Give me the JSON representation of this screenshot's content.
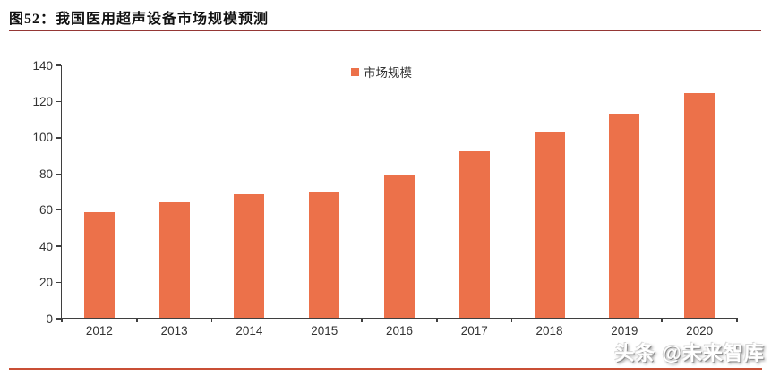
{
  "figure": {
    "title": "图52：我国医用超声设备市场规模预测"
  },
  "watermark": {
    "text": "头条 @未来智库"
  },
  "colors": {
    "bar": "#EC714A",
    "title_rule": "#953735",
    "bottom_rule": "#C94F35",
    "axis": "#3f3f3f"
  },
  "chart_data": {
    "type": "bar",
    "title": "图52：我国医用超声设备市场规模预测",
    "legend": [
      "市场规模"
    ],
    "legend_position": "top-center",
    "categories": [
      "2012",
      "2013",
      "2014",
      "2015",
      "2016",
      "2017",
      "2018",
      "2019",
      "2020"
    ],
    "series": [
      {
        "name": "市场规模",
        "values": [
          58.5,
          64,
          68.5,
          70,
          78.5,
          92,
          102.5,
          113,
          124
        ]
      }
    ],
    "xlabel": "",
    "ylabel": "",
    "ylim": [
      0,
      140
    ],
    "ytick_step": 20,
    "grid": false,
    "bar_color": "#EC714A"
  }
}
